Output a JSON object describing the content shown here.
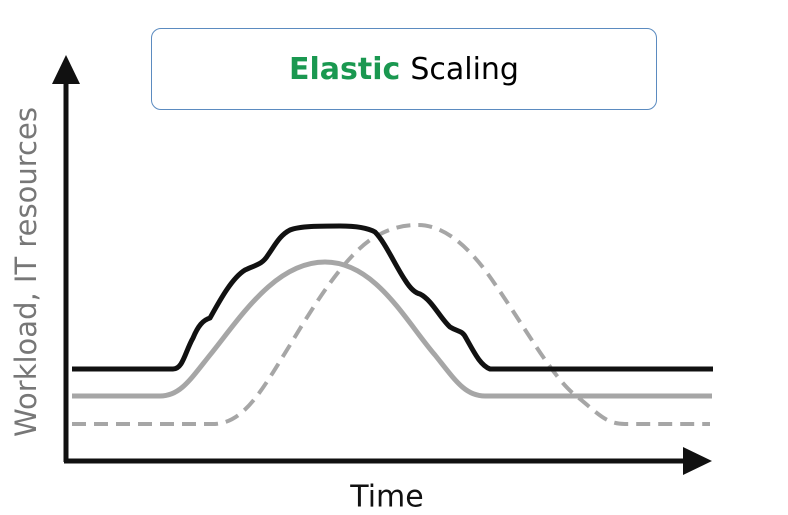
{
  "title": {
    "accent": "Elastic",
    "rest": "Scaling"
  },
  "axes": {
    "ylabel": "Workload, IT resources",
    "xlabel": "Time"
  },
  "colors": {
    "accent": "#1a9850",
    "box_border": "#5b8bc0",
    "resources_line": "#111111",
    "workload_line": "#a6a6a6",
    "dashed_line": "#a6a6a6",
    "axis": "#111111"
  }
}
